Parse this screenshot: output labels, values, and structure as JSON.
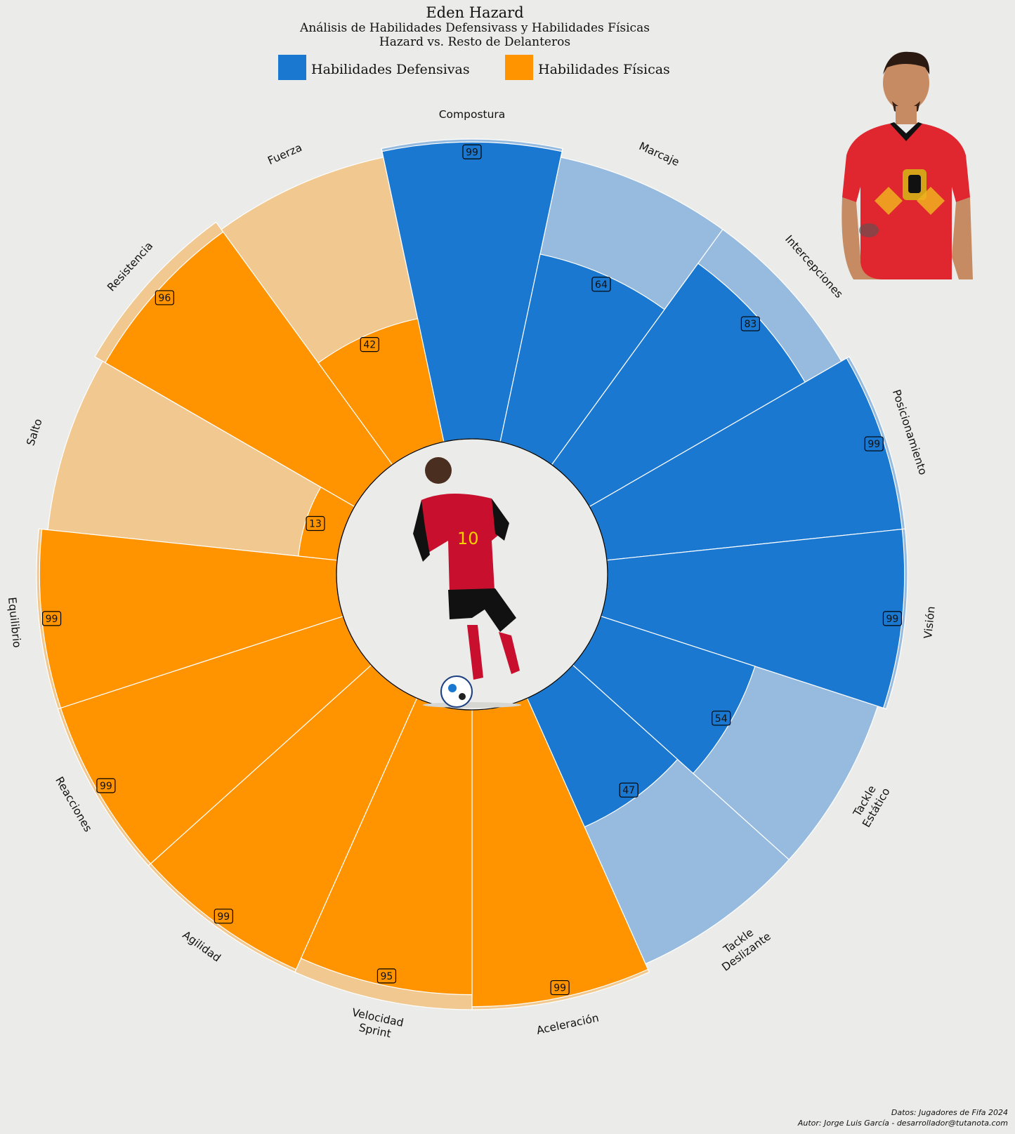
{
  "header": {
    "title": "Eden Hazard",
    "subtitle": "Análisis de Habilidades Defensivass y Habilidades Físicas",
    "subtitle2": "Hazard vs. Resto de Delanteros"
  },
  "legend": [
    {
      "label": "Habilidades Defensivas",
      "color": "#1b78d0"
    },
    {
      "label": "Habilidades Físicas",
      "color": "#ff9400"
    }
  ],
  "colors": {
    "defensive": "#1b78d0",
    "defensive_light": "#97bbdf",
    "physical": "#ff9400",
    "physical_light": "#f1c88f",
    "background": "#ebebe9"
  },
  "chart_data": {
    "type": "radial-bar",
    "ylim": [
      0,
      100
    ],
    "categories": [
      {
        "label": [
          "Compostura"
        ],
        "group": "defensive",
        "value": 99,
        "reference": 100
      },
      {
        "label": [
          "Marcaje"
        ],
        "group": "defensive",
        "value": 64,
        "reference": 97
      },
      {
        "label": [
          "Intercepciones"
        ],
        "group": "defensive",
        "value": 83,
        "reference": 97
      },
      {
        "label": [
          "Posicionamiento"
        ],
        "group": "defensive",
        "value": 99,
        "reference": 100
      },
      {
        "label": [
          "Visión"
        ],
        "group": "defensive",
        "value": 99,
        "reference": 100
      },
      {
        "label": [
          "Tackle",
          "Estático"
        ],
        "group": "defensive",
        "value": 54,
        "reference": 97
      },
      {
        "label": [
          "Tackle",
          "Deslizante"
        ],
        "group": "defensive",
        "value": 47,
        "reference": 97
      },
      {
        "label": [
          "Aceleración"
        ],
        "group": "physical",
        "value": 99,
        "reference": 100
      },
      {
        "label": [
          "Velocidad",
          "Sprint"
        ],
        "group": "physical",
        "value": 95,
        "reference": 100
      },
      {
        "label": [
          "Agilidad"
        ],
        "group": "physical",
        "value": 99,
        "reference": 100
      },
      {
        "label": [
          "Reacciones"
        ],
        "group": "physical",
        "value": 99,
        "reference": 100
      },
      {
        "label": [
          "Equilibrio"
        ],
        "group": "physical",
        "value": 99,
        "reference": 100
      },
      {
        "label": [
          "Salto"
        ],
        "group": "physical",
        "value": 13,
        "reference": 97
      },
      {
        "label": [
          "Resistencia"
        ],
        "group": "physical",
        "value": 96,
        "reference": 100
      },
      {
        "label": [
          "Fuerza"
        ],
        "group": "physical",
        "value": 42,
        "reference": 97
      }
    ]
  },
  "credits": {
    "line1": "Datos: Jugadores de Fifa 2024",
    "line2": "Autor: Jorge Luis García - desarrollador@tutanota.com"
  }
}
